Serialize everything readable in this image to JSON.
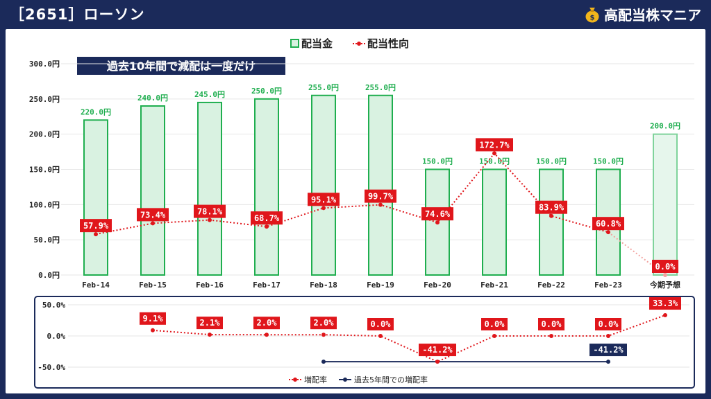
{
  "header": {
    "title": "［2651］ローソン",
    "brand": "高配当株マニア",
    "brand_icon": "money-bag-icon"
  },
  "colors": {
    "bar_fill": "#d9f2e1",
    "bar_stroke": "#1fae4f",
    "bar_forecast_fill": "#e6f6ec",
    "bar_forecast_stroke": "#7fd39b",
    "payout_line": "#e0161b",
    "growth_line": "#e0161b",
    "five_year_line": "#1b2a5a",
    "label_bg": "#e0161b",
    "label_dark_bg": "#1b2a5a",
    "value_green": "#1fae4f"
  },
  "annotation": "過去10年間で減配は一度だけ",
  "chart_data": [
    {
      "type": "bar",
      "legend": [
        "配当金",
        "配当性向"
      ],
      "legend_placement": "top-center",
      "categories": [
        "Feb-14",
        "Feb-15",
        "Feb-16",
        "Feb-17",
        "Feb-18",
        "Feb-19",
        "Feb-20",
        "Feb-21",
        "Feb-22",
        "Feb-23",
        "今期予想"
      ],
      "series": [
        {
          "name": "配当金",
          "type": "bar",
          "values": [
            220,
            240,
            245,
            250,
            255,
            255,
            150,
            150,
            150,
            150,
            200
          ],
          "labels": [
            "220.0円",
            "240.0円",
            "245.0円",
            "250.0円",
            "255.0円",
            "255.0円",
            "150.0円",
            "150.0円",
            "150.0円",
            "150.0円",
            "200.0円"
          ]
        },
        {
          "name": "配当性向",
          "type": "line",
          "values": [
            57.9,
            73.4,
            78.1,
            68.7,
            95.1,
            99.7,
            74.6,
            172.7,
            83.9,
            60.8,
            0.0
          ],
          "labels": [
            "57.9%",
            "73.4%",
            "78.1%",
            "68.7%",
            "95.1%",
            "99.7%",
            "74.6%",
            "172.7%",
            "83.9%",
            "60.8%",
            "0.0%"
          ]
        }
      ],
      "yticks": [
        "300.0円",
        "250.0円",
        "200.0円",
        "150.0円",
        "100.0円",
        "50.0円",
        "0.0円"
      ],
      "ylim": [
        0,
        300
      ],
      "grid": true
    },
    {
      "type": "line",
      "legend": [
        "増配率",
        "過去5年間での増配率"
      ],
      "legend_placement": "bottom-center",
      "categories": [
        "Feb-14",
        "Feb-15",
        "Feb-16",
        "Feb-17",
        "Feb-18",
        "Feb-19",
        "Feb-20",
        "Feb-21",
        "Feb-22",
        "Feb-23",
        "今期予想"
      ],
      "series": [
        {
          "name": "増配率",
          "values": [
            null,
            9.1,
            2.1,
            2.0,
            2.0,
            0.0,
            -41.2,
            0.0,
            0.0,
            0.0,
            33.3
          ],
          "labels": [
            "",
            "9.1%",
            "2.1%",
            "2.0%",
            "2.0%",
            "0.0%",
            "-41.2%",
            "0.0%",
            "0.0%",
            "0.0%",
            "33.3%"
          ]
        },
        {
          "name": "過去5年間での増配率",
          "values": [
            null,
            null,
            null,
            null,
            -41.2,
            null,
            null,
            null,
            null,
            -41.2,
            null
          ],
          "label": "-41.2%"
        }
      ],
      "yticks": [
        "50.0%",
        "0.0%",
        "-50.0%"
      ],
      "ylim": [
        -50,
        50
      ],
      "grid": true
    }
  ]
}
